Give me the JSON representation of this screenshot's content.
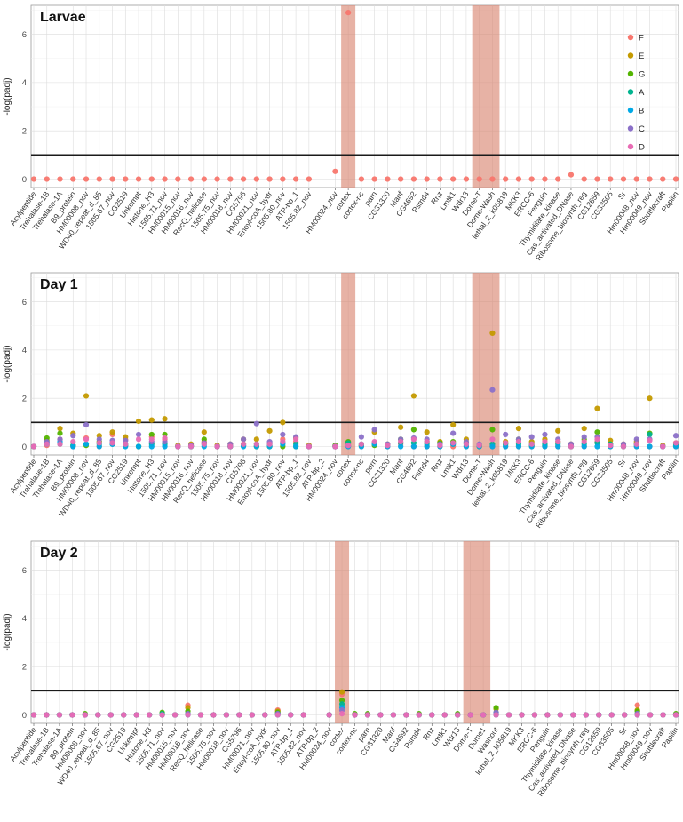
{
  "chart_data": [
    {
      "type": "scatter",
      "title": "Larvae",
      "ylabel": "-log(padj)",
      "ylim": [
        0,
        7.2
      ],
      "yticks": [
        0,
        2,
        4,
        6
      ],
      "threshold": 1,
      "categories": [
        "Acylpeptide",
        "Trehalase-1B",
        "Trehalase-1A",
        "B9_protein",
        "HM00008_nov",
        "WD40_repeat_d_85",
        "1505.67_nov",
        "CG2519",
        "Unkempt",
        "Histone_H3",
        "1505.71_nov",
        "HM00015_nov",
        "HM00016_nov",
        "RecQ_helicase",
        "1505.75_nov",
        "HM00018_nov",
        "CG5796",
        "HM00021_nov",
        "Enoyl-coA_hydr",
        "1505.80_nov",
        "ATP-bp_1",
        "1505.82_nov",
        "",
        "HM00024_nov",
        "cortex",
        "cortex-nc",
        "parn",
        "CG31320",
        "Manf",
        "CG4692",
        "Psmd4",
        "Rnz",
        "Lmtk1",
        "Wdr13",
        "Dome-T",
        "Dome-Wash",
        "lethal_2_k05819",
        "MKK3",
        "ERCC-6",
        "Penguin",
        "Thymidilate_kinase",
        "Cas_activated_DNase",
        "Ribosome_biosynth_reg",
        "CG12659",
        "CG33505",
        "Sr",
        "Hm00048_nov",
        "Hm00049_nov",
        "Shuttlecraft",
        "Papilin"
      ],
      "highlight": [
        "cortex",
        "Dome-T|Dome-Wash"
      ],
      "series": [
        {
          "name": "F",
          "values": [
            0,
            0,
            0,
            0,
            0,
            0,
            0,
            0,
            0,
            0,
            0,
            0,
            0,
            0,
            0,
            0,
            0,
            0,
            0,
            0,
            0,
            0,
            null,
            0.32,
            6.9,
            0,
            0,
            0,
            0,
            0,
            0,
            0,
            0,
            0,
            0,
            0,
            0,
            0,
            0,
            0,
            0,
            0.18,
            0,
            0,
            0,
            0,
            0,
            0,
            0,
            0
          ]
        }
      ]
    },
    {
      "type": "scatter",
      "title": "Day 1",
      "ylabel": "-log(padj)",
      "ylim": [
        0,
        7.2
      ],
      "yticks": [
        0,
        2,
        4,
        6
      ],
      "threshold": 1,
      "categories": [
        "Acylpeptide",
        "Trehalase-1B",
        "Trehalase-1A",
        "B9_protein",
        "HM00008_nov",
        "WD40_repeat_d_85",
        "1505.67_nov",
        "CG2519",
        "Unkempt",
        "Histone_H3",
        "1505.71_nov",
        "HM00015_nov",
        "HM00016_nov",
        "RecQ_helicase",
        "1505.75_nov",
        "HM00018_nov",
        "CG5796",
        "HM00021_nov",
        "Enoyl-coA_hydr",
        "1505.80_nov",
        "ATP-bp_1",
        "1505.82_nov",
        "ATP-bp_2",
        "HM00024_nov",
        "cortex",
        "cortex-nc",
        "parn",
        "CG31320",
        "Manf",
        "CG4692",
        "Psmd4",
        "Rnz",
        "Lmtk1",
        "Wdr13",
        "Dome-T",
        "Dome-Wash",
        "lethal_2_k05819",
        "MKK3",
        "ERCC-6",
        "Penguin",
        "Thymidilate_kinase",
        "Cas_activated_DNase",
        "Ribosome_biosynth_reg",
        "CG12659",
        "CG33505",
        "Sr",
        "Hm00048_nov",
        "Hm00049_nov",
        "Shuttlecraft",
        "Papilin"
      ],
      "highlight": [
        "cortex",
        "Dome-T|Dome-Wash"
      ],
      "series": [
        {
          "name": "F",
          "values": [
            0,
            0.05,
            0.3,
            0,
            0.35,
            0,
            0.5,
            0.3,
            0,
            0.4,
            0.3,
            0,
            0.05,
            0.2,
            0,
            0,
            0.05,
            0,
            0.05,
            0.3,
            0.2,
            0,
            null,
            0,
            0,
            0,
            0.1,
            0,
            0.1,
            0,
            0,
            0,
            0,
            0,
            0,
            0,
            0,
            0,
            0,
            0,
            0,
            0,
            0,
            0.2,
            0,
            0,
            0,
            0,
            0,
            0
          ]
        },
        {
          "name": "E",
          "values": [
            0,
            0.25,
            0.75,
            0.55,
            2.1,
            0.45,
            0.6,
            0.4,
            1.05,
            1.1,
            1.15,
            0.05,
            0.1,
            0.6,
            0.05,
            0.1,
            0.3,
            0.3,
            0.65,
            1.0,
            0.35,
            0.05,
            null,
            0,
            0.1,
            0.05,
            0.6,
            0.1,
            0.8,
            2.1,
            0.6,
            0.2,
            0.9,
            0.3,
            0.05,
            4.7,
            0.2,
            0.75,
            0.2,
            0.3,
            0.65,
            0.1,
            0.75,
            1.58,
            0.25,
            0.1,
            0.2,
            2.0,
            0.05,
            0.15
          ]
        },
        {
          "name": "G",
          "values": [
            0,
            0.35,
            0.55,
            0.05,
            0.05,
            0.2,
            0.15,
            0.05,
            0,
            0.5,
            0.5,
            0,
            0,
            0.3,
            0,
            0,
            0.1,
            0,
            0,
            0,
            0,
            0,
            null,
            0.05,
            0.2,
            0.05,
            0.05,
            0.05,
            0.3,
            0.7,
            0.2,
            0.15,
            0.2,
            0.15,
            0,
            0.7,
            0.1,
            0.3,
            0.05,
            0.05,
            0.2,
            0,
            0.3,
            0.6,
            0.1,
            0,
            0.1,
            0.55,
            0,
            0.05
          ]
        },
        {
          "name": "A",
          "values": [
            0,
            0.1,
            0.1,
            0.05,
            0.1,
            0.1,
            0.1,
            0.1,
            0,
            0.1,
            0.1,
            0,
            0,
            0.1,
            0,
            0,
            0.05,
            0.1,
            0.1,
            0.15,
            0.1,
            0,
            null,
            0,
            0.15,
            0.1,
            0.15,
            0.05,
            0.15,
            0.15,
            0.1,
            0.1,
            0.1,
            0.1,
            0.05,
            0.1,
            0.1,
            0.1,
            0.1,
            0.1,
            0.1,
            0.05,
            0.1,
            0.15,
            0.1,
            0.05,
            0.1,
            0.5,
            0,
            0.1
          ]
        },
        {
          "name": "B",
          "values": [
            0,
            0.15,
            0.2,
            0,
            0.1,
            0,
            0.1,
            0,
            0,
            0,
            0,
            0,
            0,
            0,
            0,
            0,
            0,
            0,
            0,
            0.1,
            0,
            0,
            null,
            0,
            0,
            0,
            0.1,
            0,
            0,
            0,
            0,
            0,
            0.1,
            0,
            0,
            0,
            0,
            0,
            0,
            0,
            0,
            0,
            0,
            0,
            0,
            0,
            0,
            0,
            0,
            0
          ]
        },
        {
          "name": "C",
          "values": [
            0,
            0.2,
            0.3,
            0.45,
            0.9,
            0.3,
            0.25,
            0.25,
            0.5,
            0.2,
            0.2,
            0,
            0.05,
            0.15,
            0,
            0.1,
            0.3,
            0.95,
            0.2,
            0.5,
            0.4,
            0,
            null,
            0,
            0.05,
            0.4,
            0.7,
            0.1,
            0.3,
            0.35,
            0.3,
            0.1,
            0.55,
            0.2,
            0.1,
            2.35,
            0.5,
            0.3,
            0.4,
            0.5,
            0.3,
            0.1,
            0.4,
            0.4,
            0.05,
            0.1,
            0.3,
            0.3,
            0,
            0.45
          ]
        },
        {
          "name": "D",
          "values": [
            0,
            0.1,
            0.1,
            0.2,
            0.3,
            0.15,
            0.15,
            0.1,
            0.3,
            0.3,
            0.35,
            0,
            0,
            0.1,
            0,
            0,
            0.1,
            0.1,
            0.1,
            0.2,
            0.3,
            0,
            null,
            0,
            0.05,
            0.1,
            0.2,
            0.05,
            0.2,
            0.3,
            0.2,
            0.05,
            0.15,
            0.1,
            0.05,
            0.3,
            0.15,
            0.2,
            0.1,
            0.2,
            0.2,
            0,
            0.2,
            0.3,
            0.05,
            0,
            0.1,
            0.25,
            0,
            0.15
          ]
        }
      ]
    },
    {
      "type": "scatter",
      "title": "Day 2",
      "ylabel": "-log(padj)",
      "ylim": [
        0,
        7.2
      ],
      "yticks": [
        0,
        2,
        4,
        6
      ],
      "threshold": 1,
      "categories": [
        "Acylpeptide",
        "Trehalase-1B",
        "Trehalase-1A",
        "B9_protein",
        "HM00008_nov",
        "WD40_repeat_d_85",
        "1505.67_nov",
        "CG2519",
        "Unkempt",
        "Histone_H3",
        "1505.71_nov",
        "HM00015_nov",
        "HM00016_nov",
        "RecQ_helicase",
        "1505.75_nov",
        "HM00018_nov",
        "CG5796",
        "HM00021_nov",
        "Enoyl-coA_hydr",
        "1505.80_nov",
        "ATP-bp_1",
        "1505.82_nov",
        "ATP-bp_2",
        "HM00024_nov",
        "cortex",
        "cortex-nc",
        "parn",
        "CG31320",
        "Manf",
        "CG4692",
        "Psmd4",
        "Rnz",
        "Lmtk1",
        "Wdr13",
        "Dome-T",
        "Dome1",
        "Washout",
        "lethal_2_k05819",
        "MKK3",
        "ERCC-6",
        "Penguin",
        "Thymidilate_kinase",
        "Cas_activated_DNase",
        "Ribosome_biosynth_reg",
        "CG12659",
        "CG33505",
        "Sr",
        "Hm00048_nov",
        "Hm00049_nov",
        "Shuttlecraft",
        "Papilin"
      ],
      "highlight": [
        "cortex",
        "Dome-T|Dome1"
      ],
      "series": [
        {
          "name": "F",
          "values": [
            0,
            0,
            0,
            0,
            0,
            0,
            0,
            0,
            0,
            0,
            0,
            0,
            0.4,
            0,
            0,
            0,
            0,
            0,
            0,
            0.2,
            0,
            0,
            null,
            0,
            0.85,
            0,
            0,
            0,
            0,
            0,
            0,
            0,
            0,
            0,
            0,
            0,
            0,
            0,
            0,
            0,
            0,
            0,
            0,
            0,
            0,
            0,
            0,
            0.4,
            0,
            0,
            0
          ]
        },
        {
          "name": "E",
          "values": [
            0,
            0,
            0,
            0,
            0,
            0,
            0,
            0,
            0,
            0,
            0,
            0,
            0.3,
            0,
            0,
            0,
            0,
            0,
            0,
            0.15,
            0,
            0,
            null,
            0,
            0.95,
            0,
            0,
            0,
            0,
            0,
            0,
            0,
            0,
            0,
            0,
            0,
            0.25,
            0,
            0,
            0,
            0,
            0,
            0,
            0,
            0,
            0,
            0,
            0.2,
            0,
            0,
            0
          ]
        },
        {
          "name": "G",
          "values": [
            0,
            0,
            0,
            0,
            0.05,
            0,
            0,
            0,
            0,
            0,
            0.1,
            0,
            0.15,
            0,
            0,
            0,
            0,
            0,
            0,
            0.1,
            0,
            0,
            null,
            0,
            0.6,
            0.05,
            0.05,
            0,
            0,
            0,
            0.05,
            0,
            0,
            0.05,
            0,
            0,
            0.3,
            0,
            0,
            0,
            0,
            0,
            0,
            0,
            0,
            0,
            0,
            0.15,
            0,
            0,
            0.05
          ]
        },
        {
          "name": "A",
          "values": [
            0,
            0,
            0,
            0,
            0,
            0,
            0,
            0,
            0,
            0,
            0.05,
            0,
            0.05,
            0,
            0,
            0,
            0,
            0,
            0,
            0.05,
            0,
            0,
            null,
            0,
            0.45,
            0,
            0,
            0,
            0,
            0,
            0,
            0,
            0,
            0,
            0,
            0,
            0.1,
            0,
            0,
            0,
            0,
            0,
            0,
            0,
            0,
            0,
            0,
            0.05,
            0,
            0,
            0
          ]
        },
        {
          "name": "B",
          "values": [
            0,
            0,
            0,
            0,
            0,
            0,
            0,
            0,
            0,
            0,
            0,
            0,
            0,
            0,
            0,
            0,
            0,
            0,
            0,
            0,
            0,
            0,
            null,
            0,
            0.3,
            0,
            0,
            0,
            0,
            0,
            0,
            0,
            0,
            0,
            0,
            0,
            0,
            0,
            0,
            0,
            0,
            0,
            0,
            0,
            0,
            0,
            0,
            0,
            0,
            0,
            0
          ]
        },
        {
          "name": "C",
          "values": [
            0,
            0,
            0,
            0,
            0,
            0,
            0,
            0,
            0,
            0,
            0,
            0,
            0.05,
            0,
            0,
            0,
            0,
            0,
            0,
            0.05,
            0,
            0,
            null,
            0,
            0.2,
            0,
            0,
            0,
            0,
            0,
            0,
            0,
            0,
            0,
            0,
            0,
            0.1,
            0,
            0,
            0,
            0,
            0,
            0,
            0,
            0,
            0,
            0,
            0.05,
            0,
            0,
            0
          ]
        },
        {
          "name": "D",
          "values": [
            0,
            0,
            0,
            0,
            0,
            0,
            0,
            0,
            0,
            0,
            0,
            0,
            0,
            0,
            0,
            0,
            0,
            0,
            0,
            0,
            0,
            0,
            null,
            0,
            0.05,
            0,
            0,
            0,
            0,
            0,
            0,
            0,
            0,
            0,
            0,
            0,
            0,
            0,
            0,
            0,
            0,
            0,
            0,
            0,
            0,
            0,
            0,
            0,
            0,
            0,
            0
          ]
        }
      ]
    }
  ],
  "legend": {
    "placement": "top-right of Larvae panel",
    "items": [
      {
        "name": "F",
        "color": "#F8766D"
      },
      {
        "name": "E",
        "color": "#C49A00"
      },
      {
        "name": "G",
        "color": "#53B400"
      },
      {
        "name": "A",
        "color": "#00B48F"
      },
      {
        "name": "B",
        "color": "#00A9E6"
      },
      {
        "name": "C",
        "color": "#8B70C8"
      },
      {
        "name": "D",
        "color": "#E86CB4"
      }
    ]
  },
  "colors": {
    "highlight_band": "#d9826e",
    "threshold_line": "#1a1a1a",
    "grid": "#dcdcdc"
  }
}
